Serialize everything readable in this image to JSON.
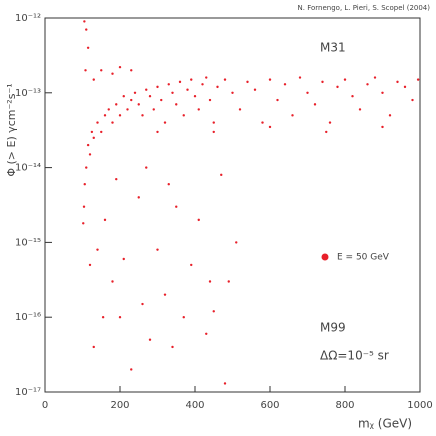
{
  "chart_data": {
    "type": "scatter",
    "credit": "N. Fornengo, L. Pieri, S. Scopel (2004)",
    "annotations": [
      "M31",
      "M99",
      "ΔΩ=10⁻⁵ sr"
    ],
    "x_label": "mᵪ (GeV)",
    "y_label": "Φ (> E) γcm⁻²s⁻¹",
    "xlim": [
      0,
      1000
    ],
    "xticks": [
      0,
      200,
      400,
      600,
      800,
      1000
    ],
    "ylim": [
      1e-17,
      1e-12
    ],
    "yticks": [
      {
        "value": 1e-17,
        "label": "10⁻¹⁷"
      },
      {
        "value": 1e-16,
        "label": "10⁻¹⁶"
      },
      {
        "value": 1e-15,
        "label": "10⁻¹⁵"
      },
      {
        "value": 1e-14,
        "label": "10⁻¹⁴"
      },
      {
        "value": 1e-13,
        "label": "10⁻¹³"
      },
      {
        "value": 1e-12,
        "label": "10⁻¹²"
      }
    ],
    "log_y": true,
    "legend": "right",
    "series": [
      {
        "name": "E = 50 GeV",
        "color": "#e8202a",
        "x": [
          105,
          110,
          115,
          108,
          102,
          104,
          106,
          110,
          115,
          120,
          125,
          130,
          140,
          150,
          160,
          170,
          180,
          190,
          200,
          210,
          220,
          230,
          240,
          250,
          260,
          270,
          280,
          290,
          300,
          310,
          320,
          330,
          340,
          350,
          360,
          370,
          380,
          390,
          400,
          410,
          420,
          430,
          440,
          450,
          460,
          480,
          500,
          520,
          540,
          560,
          580,
          600,
          620,
          640,
          660,
          680,
          700,
          720,
          740,
          760,
          780,
          800,
          820,
          840,
          860,
          880,
          900,
          920,
          940,
          960,
          980,
          995,
          130,
          150,
          180,
          200,
          230,
          300,
          450,
          600,
          750,
          900,
          120,
          140,
          160,
          180,
          200,
          210,
          230,
          250,
          260,
          280,
          300,
          320,
          340,
          350,
          370,
          390,
          410,
          430,
          450,
          470,
          490,
          510,
          130,
          155,
          190,
          270,
          330,
          440,
          480
        ],
        "values": [
          9e-13,
          7e-13,
          4e-13,
          2e-13,
          1.8e-15,
          3e-15,
          6e-15,
          1e-14,
          2e-14,
          1.5e-14,
          3e-14,
          2.5e-14,
          4e-14,
          3e-14,
          5e-14,
          6e-14,
          4e-14,
          7e-14,
          5e-14,
          9e-14,
          6e-14,
          8e-14,
          1e-13,
          7e-14,
          5e-14,
          1.1e-13,
          9e-14,
          6e-14,
          1.2e-13,
          8e-14,
          4e-14,
          1.3e-13,
          1e-13,
          7e-14,
          1.4e-13,
          5e-14,
          1.1e-13,
          1.5e-13,
          9e-14,
          6e-14,
          1.3e-13,
          1.6e-13,
          8e-14,
          4e-14,
          1.2e-13,
          1.5e-13,
          1e-13,
          6e-14,
          1.4e-13,
          1.1e-13,
          4e-14,
          1.5e-13,
          8e-14,
          1.3e-13,
          5e-14,
          1.6e-13,
          1e-13,
          7e-14,
          1.4e-13,
          4e-14,
          1.2e-13,
          1.5e-13,
          9e-14,
          6e-14,
          1.3e-13,
          1.6e-13,
          1e-13,
          5e-14,
          1.4e-13,
          1.2e-13,
          8e-14,
          1.5e-13,
          1.5e-13,
          2e-13,
          1.8e-13,
          2.2e-13,
          2e-13,
          3e-14,
          3e-14,
          3.5e-14,
          3e-14,
          3.5e-14,
          5e-16,
          8e-16,
          2e-15,
          3e-16,
          1e-16,
          6e-16,
          2e-17,
          4e-15,
          1.5e-16,
          5e-17,
          8e-16,
          2e-16,
          4e-17,
          3e-15,
          1e-16,
          5e-16,
          2e-15,
          6e-17,
          1.2e-16,
          8e-15,
          3e-16,
          1e-15,
          4e-17,
          1e-16,
          7e-15,
          1e-14,
          6e-15,
          3e-16,
          1.3e-17
        ]
      }
    ]
  }
}
